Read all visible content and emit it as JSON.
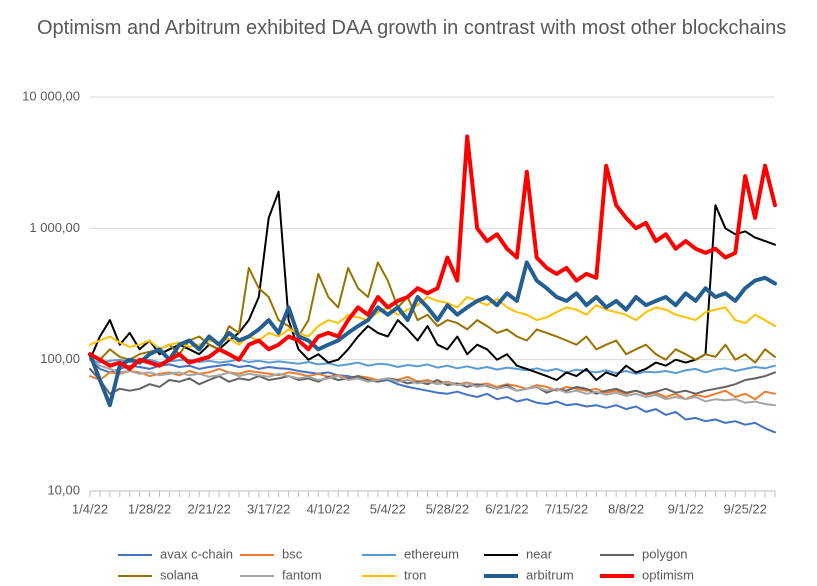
{
  "chart_data": {
    "type": "line",
    "title": "Optimism and Arbitrum exhibited DAA growth in contrast with most other blockchains",
    "log_scale": true,
    "grid": true,
    "legend": "bottom",
    "ylim": [
      10,
      10000
    ],
    "yticks": [
      {
        "value": 10,
        "label": "10,00"
      },
      {
        "value": 100,
        "label": "100,00"
      },
      {
        "value": 1000,
        "label": "1 000,00"
      },
      {
        "value": 10000,
        "label": "10 000,00"
      }
    ],
    "categories": [
      "1/4/22",
      null,
      null,
      null,
      null,
      null,
      "1/28/22",
      null,
      null,
      null,
      null,
      null,
      "2/21/22",
      null,
      null,
      null,
      null,
      null,
      "3/17/22",
      null,
      null,
      null,
      null,
      null,
      "4/10/22",
      null,
      null,
      null,
      null,
      null,
      "5/4/22",
      null,
      null,
      null,
      null,
      null,
      "5/28/22",
      null,
      null,
      null,
      null,
      null,
      "6/21/22",
      null,
      null,
      null,
      null,
      null,
      "7/15/22",
      null,
      null,
      null,
      null,
      null,
      "8/8/22",
      null,
      null,
      null,
      null,
      null,
      "9/1/22",
      null,
      null,
      null,
      null,
      null,
      "9/25/22",
      null,
      null,
      null
    ],
    "series": [
      {
        "name": "avax c-chain",
        "color": "#4472c4",
        "line_width": 2,
        "values": [
          100,
          85,
          80,
          85,
          90,
          88,
          85,
          90,
          92,
          88,
          90,
          85,
          88,
          90,
          92,
          88,
          90,
          85,
          88,
          86,
          85,
          82,
          80,
          78,
          80,
          76,
          75,
          72,
          70,
          68,
          70,
          65,
          62,
          60,
          58,
          56,
          55,
          57,
          54,
          52,
          55,
          50,
          52,
          48,
          50,
          47,
          46,
          48,
          45,
          46,
          44,
          45,
          43,
          45,
          42,
          44,
          40,
          42,
          38,
          40,
          35,
          36,
          34,
          35,
          33,
          34,
          32,
          33,
          30,
          28
        ]
      },
      {
        "name": "bsc",
        "color": "#ed7d31",
        "line_width": 2,
        "values": [
          75,
          70,
          80,
          78,
          82,
          80,
          75,
          78,
          80,
          76,
          82,
          78,
          80,
          85,
          80,
          78,
          82,
          80,
          78,
          76,
          80,
          78,
          75,
          78,
          74,
          76,
          72,
          75,
          73,
          70,
          72,
          70,
          74,
          68,
          70,
          66,
          68,
          65,
          67,
          64,
          66,
          62,
          65,
          63,
          60,
          64,
          62,
          58,
          62,
          60,
          58,
          60,
          56,
          58,
          55,
          58,
          54,
          56,
          52,
          55,
          50,
          54,
          52,
          55,
          58,
          52,
          55,
          50,
          57,
          55
        ]
      },
      {
        "name": "ethereum",
        "color": "#5b9bd5",
        "line_width": 2,
        "values": [
          100,
          95,
          98,
          100,
          96,
          98,
          100,
          95,
          97,
          99,
          100,
          96,
          98,
          95,
          97,
          100,
          96,
          98,
          95,
          97,
          95,
          93,
          96,
          92,
          94,
          90,
          92,
          95,
          90,
          93,
          92,
          88,
          91,
          89,
          92,
          87,
          90,
          86,
          89,
          85,
          88,
          84,
          87,
          85,
          83,
          86,
          82,
          85,
          80,
          84,
          82,
          80,
          83,
          79,
          82,
          78,
          81,
          80,
          82,
          79,
          83,
          85,
          80,
          84,
          86,
          82,
          85,
          88,
          86,
          90
        ]
      },
      {
        "name": "near",
        "color": "#000000",
        "line_width": 2,
        "values": [
          100,
          150,
          200,
          130,
          160,
          120,
          140,
          110,
          120,
          130,
          120,
          110,
          130,
          120,
          140,
          160,
          200,
          300,
          1200,
          1900,
          200,
          120,
          100,
          110,
          95,
          100,
          120,
          150,
          180,
          160,
          150,
          200,
          170,
          140,
          180,
          130,
          120,
          150,
          110,
          130,
          120,
          100,
          110,
          90,
          85,
          80,
          75,
          70,
          80,
          75,
          85,
          70,
          80,
          75,
          90,
          80,
          85,
          95,
          90,
          100,
          95,
          100,
          110,
          1500,
          1000,
          900,
          950,
          850,
          800,
          750
        ]
      },
      {
        "name": "polygon",
        "color": "#636363",
        "line_width": 2,
        "values": [
          85,
          70,
          55,
          60,
          58,
          60,
          65,
          62,
          70,
          68,
          72,
          65,
          70,
          75,
          68,
          72,
          70,
          75,
          70,
          72,
          75,
          70,
          72,
          68,
          74,
          70,
          72,
          75,
          70,
          68,
          72,
          70,
          66,
          68,
          65,
          70,
          64,
          66,
          62,
          65,
          63,
          60,
          64,
          58,
          60,
          62,
          56,
          60,
          58,
          62,
          60,
          55,
          58,
          60,
          56,
          58,
          55,
          57,
          60,
          56,
          58,
          55,
          58,
          60,
          62,
          65,
          70,
          72,
          75,
          80
        ]
      },
      {
        "name": "solana",
        "color": "#997300",
        "line_width": 2,
        "values": [
          110,
          100,
          120,
          105,
          100,
          110,
          115,
          120,
          130,
          110,
          140,
          150,
          130,
          120,
          180,
          160,
          500,
          350,
          300,
          200,
          180,
          150,
          200,
          450,
          300,
          250,
          500,
          350,
          300,
          550,
          400,
          250,
          300,
          200,
          220,
          180,
          200,
          190,
          170,
          200,
          180,
          160,
          170,
          150,
          140,
          170,
          160,
          150,
          140,
          130,
          150,
          120,
          130,
          140,
          110,
          120,
          130,
          110,
          100,
          120,
          110,
          100,
          110,
          105,
          130,
          100,
          110,
          95,
          120,
          105
        ]
      },
      {
        "name": "fantom",
        "color": "#a5a5a5",
        "line_width": 2,
        "values": [
          100,
          90,
          85,
          80,
          82,
          78,
          80,
          76,
          78,
          80,
          76,
          78,
          74,
          76,
          80,
          75,
          78,
          76,
          74,
          78,
          75,
          72,
          74,
          70,
          72,
          75,
          70,
          72,
          68,
          70,
          72,
          68,
          70,
          66,
          68,
          65,
          67,
          64,
          66,
          62,
          64,
          60,
          62,
          58,
          60,
          62,
          58,
          60,
          56,
          58,
          55,
          57,
          54,
          56,
          53,
          55,
          52,
          54,
          50,
          52,
          50,
          52,
          48,
          50,
          49,
          50,
          47,
          48,
          46,
          45
        ]
      },
      {
        "name": "tron",
        "color": "#ffc000",
        "line_width": 2,
        "values": [
          130,
          140,
          150,
          135,
          125,
          130,
          140,
          120,
          130,
          135,
          125,
          130,
          140,
          135,
          145,
          130,
          150,
          140,
          160,
          150,
          170,
          160,
          150,
          180,
          200,
          190,
          220,
          210,
          200,
          230,
          250,
          220,
          240,
          260,
          300,
          280,
          270,
          250,
          300,
          280,
          260,
          290,
          250,
          230,
          220,
          200,
          210,
          230,
          250,
          240,
          220,
          260,
          240,
          230,
          220,
          200,
          230,
          250,
          240,
          220,
          210,
          200,
          230,
          240,
          250,
          200,
          190,
          220,
          200,
          180
        ]
      },
      {
        "name": "arbitrum",
        "color": "#255e91",
        "line_width": 4,
        "values": [
          110,
          70,
          45,
          90,
          100,
          95,
          110,
          120,
          100,
          130,
          140,
          120,
          150,
          130,
          160,
          140,
          150,
          170,
          200,
          160,
          250,
          150,
          140,
          120,
          130,
          140,
          160,
          180,
          200,
          250,
          220,
          250,
          200,
          300,
          250,
          200,
          260,
          220,
          250,
          280,
          300,
          260,
          320,
          280,
          550,
          400,
          350,
          300,
          280,
          320,
          260,
          300,
          250,
          280,
          240,
          300,
          260,
          280,
          300,
          260,
          320,
          280,
          350,
          300,
          320,
          280,
          350,
          400,
          420,
          380
        ]
      },
      {
        "name": "optimism",
        "color": "#ff0000",
        "line_width": 4,
        "values": [
          110,
          100,
          90,
          95,
          85,
          100,
          95,
          90,
          100,
          110,
          95,
          100,
          105,
          120,
          110,
          100,
          130,
          140,
          120,
          130,
          150,
          140,
          120,
          150,
          160,
          150,
          200,
          250,
          220,
          300,
          250,
          280,
          300,
          350,
          320,
          350,
          600,
          400,
          5000,
          1000,
          800,
          900,
          700,
          600,
          2700,
          600,
          500,
          450,
          500,
          400,
          450,
          420,
          3000,
          1500,
          1200,
          1000,
          1100,
          800,
          900,
          700,
          800,
          700,
          650,
          700,
          600,
          650,
          2500,
          1200,
          3000,
          1500
        ]
      }
    ]
  }
}
